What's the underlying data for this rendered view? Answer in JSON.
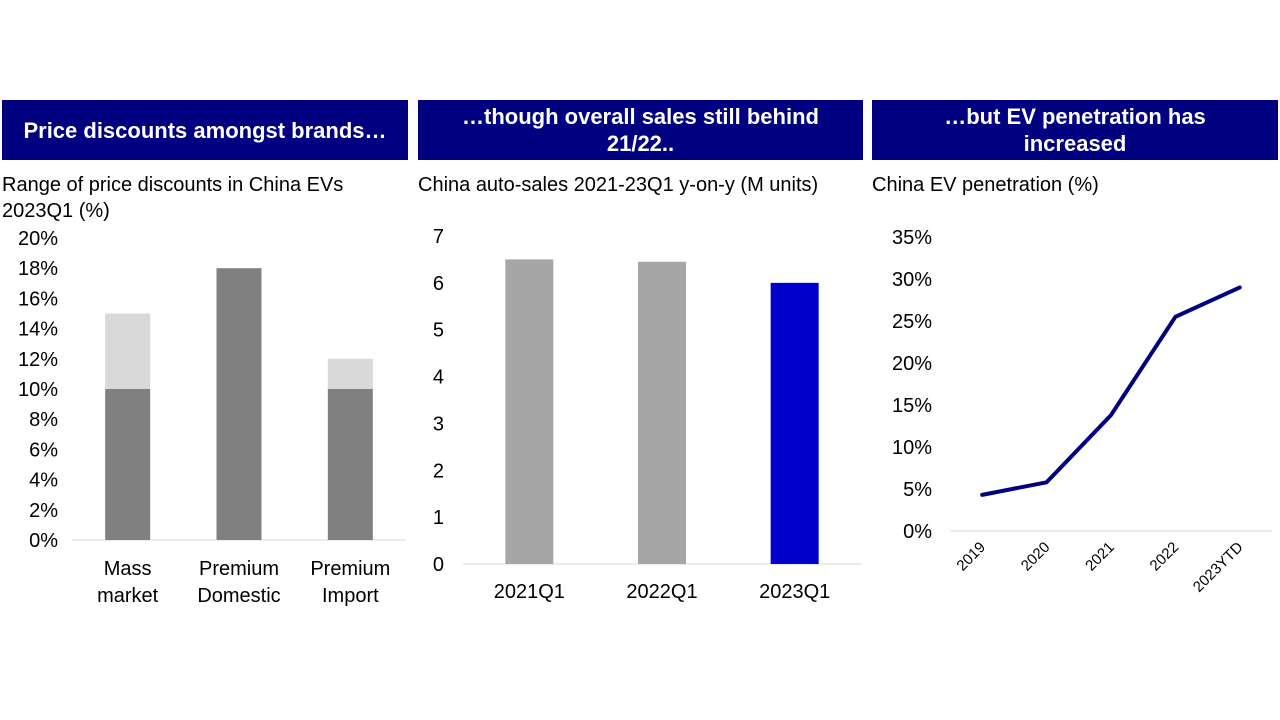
{
  "panels": [
    {
      "banner": "Price discounts amongst brands…",
      "subtitle": "Range of price discounts in China EVs 2023Q1 (%)"
    },
    {
      "banner": "…though overall sales still behind 21/22..",
      "subtitle": "China auto-sales 2021-23Q1 y-on-y (M units)"
    },
    {
      "banner": "…but EV penetration has increased",
      "subtitle": "China EV penetration (%)"
    }
  ],
  "chart_data": [
    {
      "type": "bar",
      "stacked": true,
      "categories": [
        [
          "Mass",
          "market"
        ],
        [
          "Premium",
          "Domestic"
        ],
        [
          "Premium",
          "Import"
        ]
      ],
      "series": [
        {
          "values": [
            10,
            18,
            10
          ],
          "color": "#808080"
        },
        {
          "values": [
            5,
            0,
            2
          ],
          "color": "#d9d9d9"
        }
      ],
      "ylim": [
        0,
        20
      ],
      "yticks": [
        "0%",
        "2%",
        "4%",
        "6%",
        "8%",
        "10%",
        "12%",
        "14%",
        "16%",
        "18%",
        "20%"
      ],
      "grid": false
    },
    {
      "type": "bar",
      "categories": [
        "2021Q1",
        "2022Q1",
        "2023Q1"
      ],
      "values": [
        6.5,
        6.45,
        6.0
      ],
      "colors": [
        "#a6a6a6",
        "#a6a6a6",
        "#0000cc"
      ],
      "ylim": [
        0,
        7
      ],
      "yticks": [
        "0",
        "1",
        "2",
        "3",
        "4",
        "5",
        "6",
        "7"
      ],
      "grid": false
    },
    {
      "type": "line",
      "x": [
        "2019",
        "2020",
        "2021",
        "2022",
        "2023YTD"
      ],
      "values": [
        4.3,
        5.8,
        13.8,
        25.5,
        29
      ],
      "color": "#000080",
      "ylim": [
        0,
        35
      ],
      "yticks": [
        "0%",
        "5%",
        "10%",
        "15%",
        "20%",
        "25%",
        "30%",
        "35%"
      ],
      "grid": false
    }
  ]
}
